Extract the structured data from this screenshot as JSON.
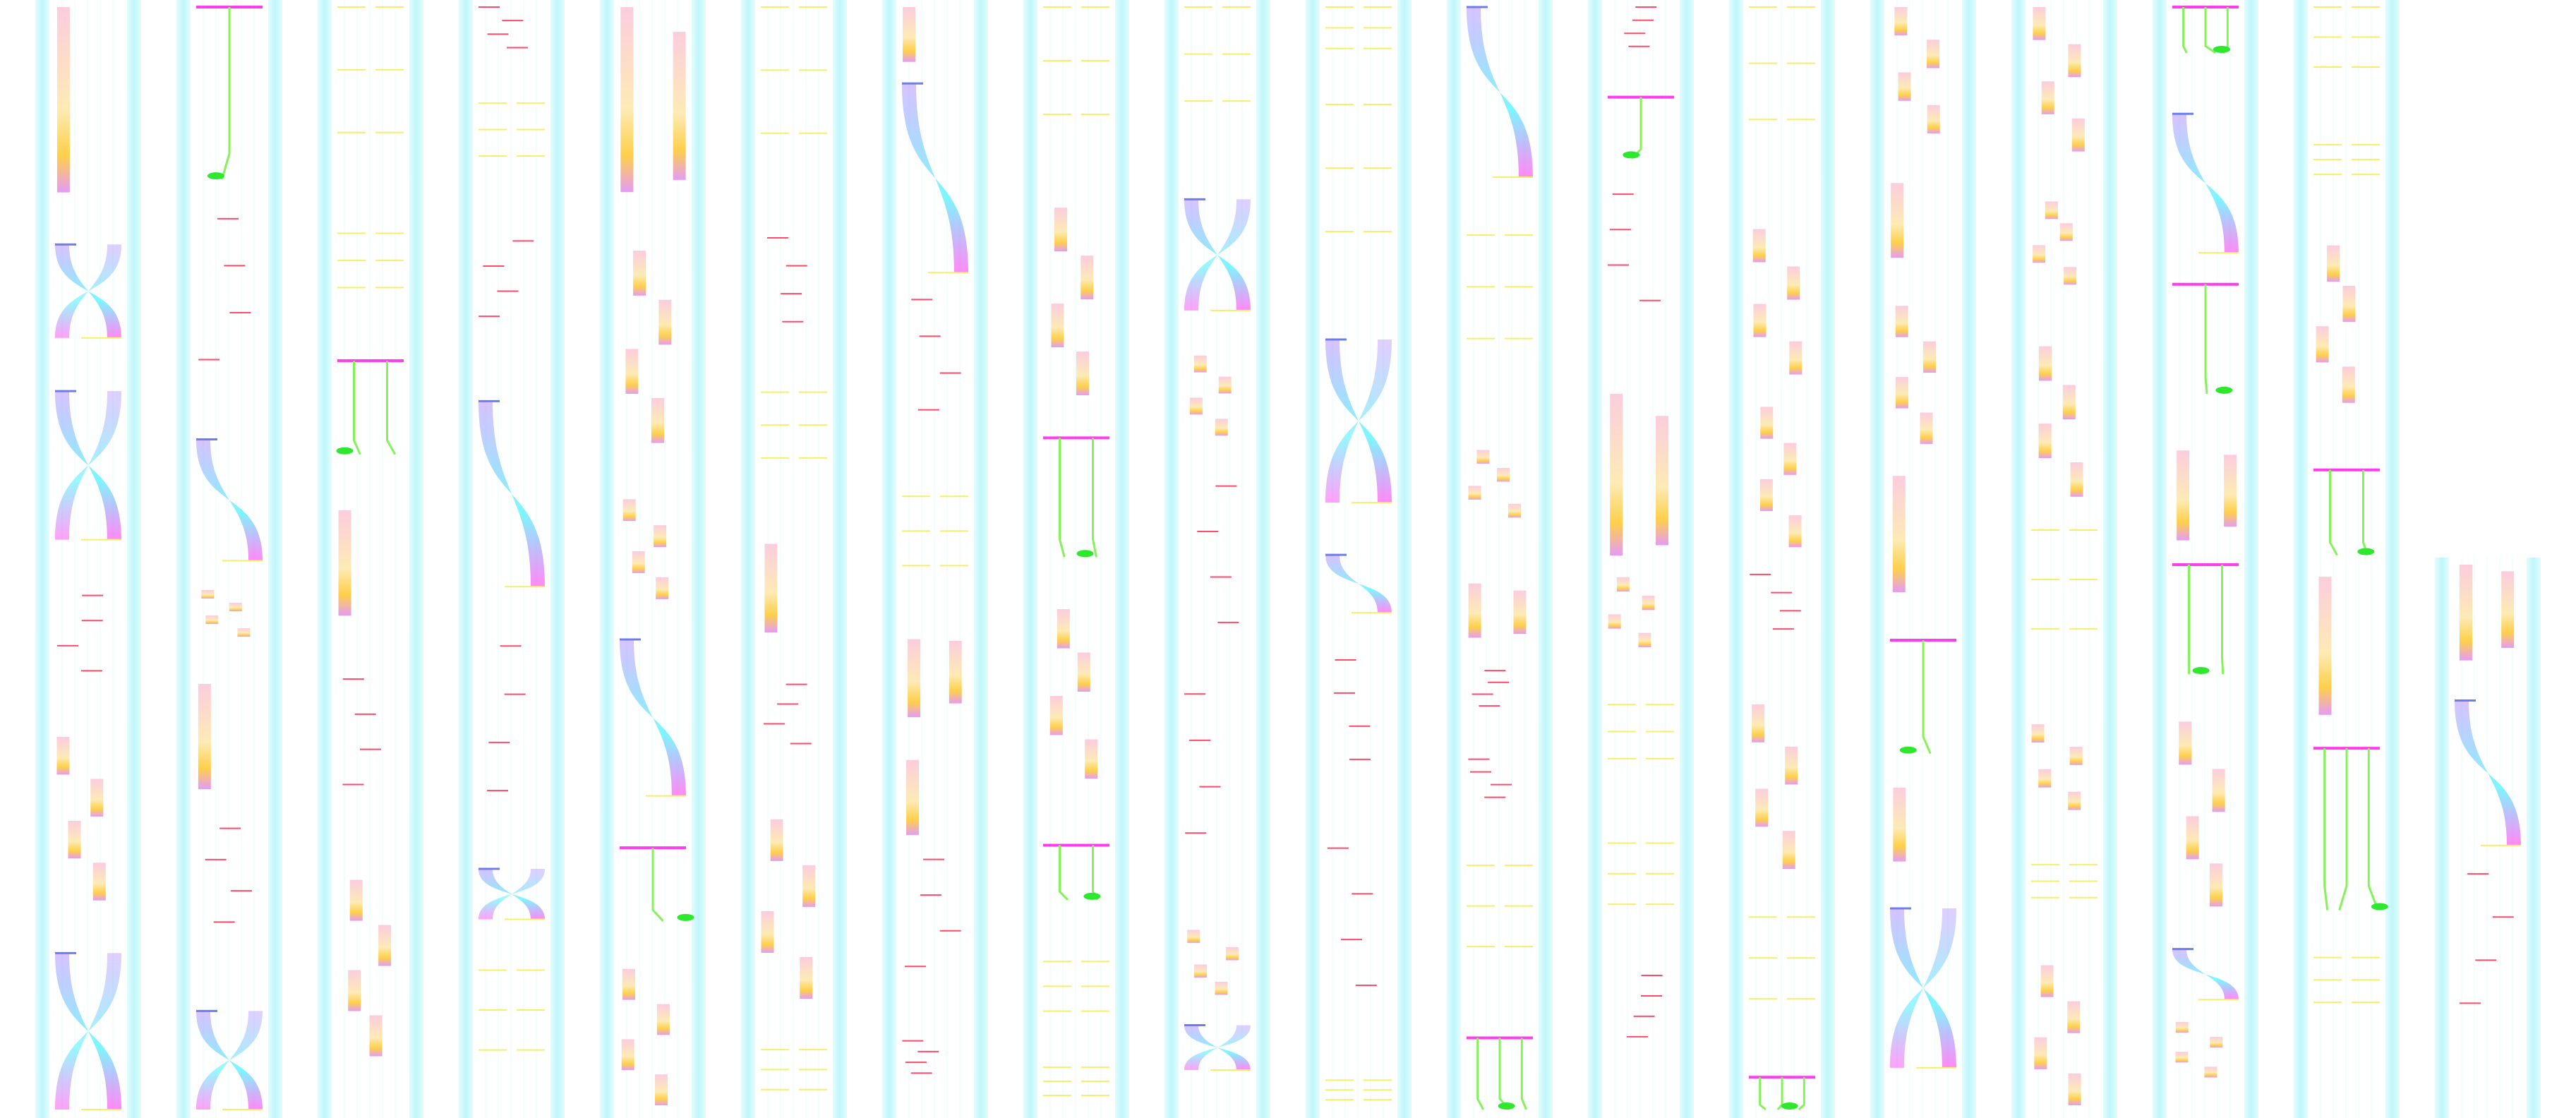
{
  "palette": {
    "background": "#ffffff",
    "track_edge": "#bff7fb",
    "track_line": "#e4fbfd",
    "bar_top": "#fbc4d8",
    "bar_mid": "#fde7a8",
    "bar_accent": "#ffc72a",
    "bar_base": "#e08af5",
    "dash_red": "#ff4a6a",
    "dash_yellow": "#f4f06a",
    "link_green": "#86f25a",
    "blob_green": "#2ee82e",
    "fan_cyan": "#3ef2ff",
    "fan_violet": "#b48cff",
    "fan_magenta": "#ff3cf0",
    "cap_blue": "#6d7cf2"
  }
}
